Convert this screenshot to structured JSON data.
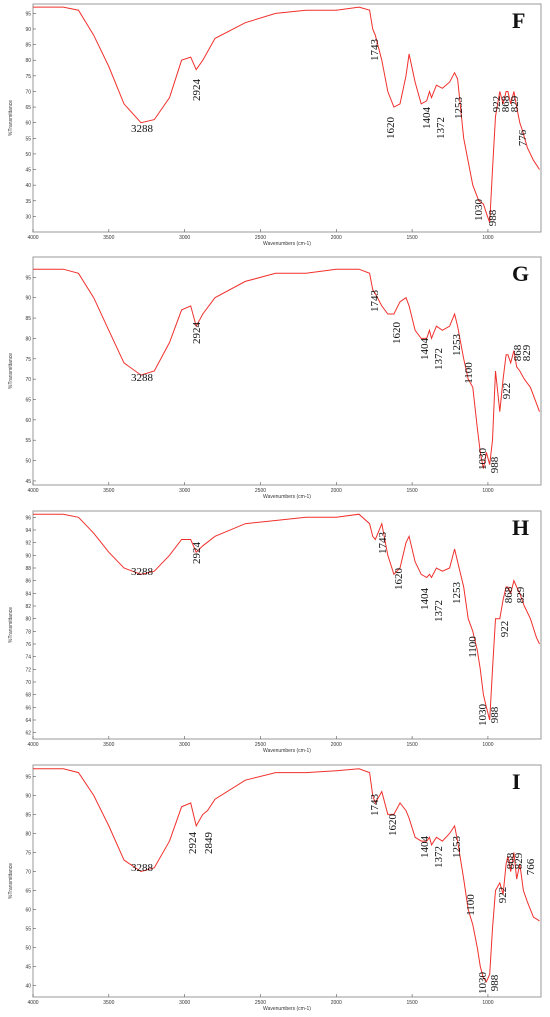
{
  "colors": {
    "line": "#f0302c",
    "frame": "#9a9a9a",
    "text": "#111111"
  },
  "chart_data": [
    {
      "type": "line",
      "panel": "F",
      "xlabel": "Wavenumbers (cm-1)",
      "ylabel": "%Transmittance",
      "xlim": [
        4000,
        650
      ],
      "ylim": [
        25,
        98
      ],
      "x_ticks": [
        "4000",
        "3500",
        "3000",
        "2500",
        "2000",
        "1500",
        "1000"
      ],
      "y_ticks": [
        "30",
        "35",
        "40",
        "45",
        "50",
        "55",
        "60",
        "65",
        "70",
        "75",
        "80",
        "85",
        "90",
        "95"
      ],
      "peak_labels": [
        "3288",
        "2924",
        "1743",
        "1620",
        "1404",
        "1372",
        "1253",
        "1030",
        "988",
        "922",
        "868",
        "829",
        "776"
      ],
      "series": [
        {
          "x": [
            4000,
            3800,
            3700,
            3600,
            3500,
            3400,
            3288,
            3200,
            3100,
            3020,
            2960,
            2924,
            2880,
            2800,
            2600,
            2400,
            2200,
            2000,
            1850,
            1780,
            1760,
            1743,
            1700,
            1660,
            1620,
            1580,
            1540,
            1520,
            1480,
            1440,
            1404,
            1385,
            1372,
            1340,
            1300,
            1253,
            1220,
            1200,
            1160,
            1100,
            1060,
            1030,
            1010,
            988,
            970,
            950,
            922,
            900,
            880,
            868,
            850,
            829,
            810,
            790,
            776,
            740,
            700,
            660
          ],
          "y": [
            97,
            97,
            96,
            88,
            78,
            66,
            60,
            61,
            68,
            80,
            81,
            77,
            80,
            87,
            92,
            95,
            96,
            96,
            97,
            96,
            90,
            88,
            80,
            70,
            65,
            66,
            75,
            82,
            73,
            66,
            67,
            70,
            68,
            72,
            71,
            73,
            76,
            74,
            55,
            40,
            35,
            34,
            31,
            28,
            45,
            62,
            70,
            66,
            70,
            70,
            66,
            70,
            65,
            60,
            58,
            52,
            48,
            45
          ]
        }
      ]
    },
    {
      "type": "line",
      "panel": "G",
      "xlabel": "Wavenumbers (cm-1)",
      "ylabel": "%Transmittance",
      "xlim": [
        4000,
        650
      ],
      "ylim": [
        44,
        100
      ],
      "x_ticks": [
        "4000",
        "3500",
        "3000",
        "2500",
        "2000",
        "1500",
        "1000"
      ],
      "y_ticks": [
        "45",
        "50",
        "55",
        "60",
        "65",
        "70",
        "75",
        "80",
        "85",
        "90",
        "95"
      ],
      "peak_labels": [
        "3288",
        "2924",
        "1743",
        "1620",
        "1404",
        "1372",
        "1253",
        "1100",
        "1030",
        "988",
        "922",
        "868",
        "829"
      ],
      "series": [
        {
          "x": [
            4000,
            3800,
            3700,
            3600,
            3500,
            3400,
            3288,
            3200,
            3100,
            3020,
            2960,
            2924,
            2880,
            2800,
            2600,
            2400,
            2200,
            2000,
            1850,
            1780,
            1760,
            1743,
            1700,
            1660,
            1620,
            1580,
            1540,
            1520,
            1480,
            1440,
            1404,
            1385,
            1372,
            1340,
            1300,
            1253,
            1220,
            1200,
            1160,
            1130,
            1100,
            1070,
            1050,
            1030,
            1010,
            988,
            970,
            950,
            922,
            900,
            880,
            868,
            850,
            829,
            810,
            790,
            760,
            720,
            680,
            660
          ],
          "y": [
            97,
            97,
            96,
            90,
            82,
            74,
            71,
            72,
            79,
            87,
            88,
            83,
            86,
            90,
            94,
            96,
            96,
            97,
            97,
            96,
            92,
            91,
            88,
            86,
            86,
            89,
            90,
            88,
            82,
            80,
            80,
            82,
            80,
            83,
            82,
            83,
            86,
            83,
            75,
            70,
            68,
            58,
            52,
            48,
            52,
            49,
            55,
            72,
            62,
            70,
            76,
            76,
            74,
            77,
            73,
            72,
            70,
            68,
            64,
            62
          ]
        }
      ]
    },
    {
      "type": "line",
      "panel": "H",
      "xlabel": "Wavenumbers (cm-1)",
      "ylabel": "%Transmittance",
      "xlim": [
        4000,
        650
      ],
      "ylim": [
        61,
        97
      ],
      "x_ticks": [
        "4000",
        "3500",
        "3000",
        "2500",
        "2000",
        "1500",
        "1000"
      ],
      "y_ticks": [
        "62",
        "64",
        "66",
        "68",
        "70",
        "72",
        "74",
        "76",
        "78",
        "80",
        "82",
        "84",
        "86",
        "88",
        "90",
        "92",
        "94",
        "96"
      ],
      "peak_labels": [
        "3288",
        "2924",
        "1743",
        "1620",
        "1404",
        "1372",
        "1253",
        "1100",
        "1030",
        "988",
        "922",
        "868",
        "829"
      ],
      "series": [
        {
          "x": [
            4000,
            3800,
            3700,
            3600,
            3500,
            3400,
            3288,
            3200,
            3100,
            3020,
            2960,
            2924,
            2880,
            2800,
            2600,
            2400,
            2200,
            2000,
            1850,
            1780,
            1760,
            1743,
            1700,
            1660,
            1620,
            1580,
            1540,
            1520,
            1480,
            1440,
            1404,
            1385,
            1372,
            1340,
            1300,
            1253,
            1220,
            1200,
            1160,
            1130,
            1100,
            1070,
            1050,
            1030,
            1010,
            988,
            970,
            950,
            922,
            900,
            880,
            868,
            850,
            829,
            810,
            790,
            760,
            720,
            680,
            660
          ],
          "y": [
            96.5,
            96.5,
            96,
            93.5,
            90.5,
            88,
            87,
            87.5,
            90,
            92.5,
            92.5,
            90.5,
            91.5,
            93,
            95,
            95.5,
            96,
            96,
            96.5,
            95,
            93,
            92.5,
            95,
            90,
            87,
            88,
            92,
            93,
            89,
            87,
            86.5,
            87,
            86.5,
            88,
            87.5,
            88,
            91,
            89,
            85,
            80,
            78,
            75,
            72,
            68,
            66,
            64,
            72,
            80,
            80,
            83,
            85,
            85,
            84,
            86,
            85,
            84,
            82,
            80,
            77,
            76
          ]
        }
      ]
    },
    {
      "type": "line",
      "panel": "I",
      "xlabel": "Wavenumbers (cm-1)",
      "ylabel": "%Transmittance",
      "xlim": [
        4000,
        650
      ],
      "ylim": [
        37,
        98
      ],
      "x_ticks": [
        "4000",
        "3500",
        "3000",
        "2500",
        "2000",
        "1500",
        "1000"
      ],
      "y_ticks": [
        "40",
        "45",
        "50",
        "55",
        "60",
        "65",
        "70",
        "75",
        "80",
        "85",
        "90",
        "95"
      ],
      "peak_labels": [
        "3288",
        "2924",
        "2849",
        "1743",
        "1620",
        "1404",
        "1372",
        "1253",
        "1100",
        "1030",
        "988",
        "922",
        "868",
        "829",
        "766"
      ],
      "series": [
        {
          "x": [
            4000,
            3800,
            3700,
            3600,
            3500,
            3400,
            3288,
            3200,
            3100,
            3020,
            2960,
            2924,
            2880,
            2849,
            2800,
            2600,
            2400,
            2200,
            2000,
            1850,
            1780,
            1760,
            1743,
            1700,
            1660,
            1620,
            1580,
            1540,
            1520,
            1480,
            1440,
            1404,
            1385,
            1372,
            1340,
            1300,
            1253,
            1220,
            1200,
            1160,
            1130,
            1100,
            1070,
            1050,
            1030,
            1010,
            988,
            970,
            950,
            922,
            900,
            880,
            868,
            850,
            829,
            810,
            790,
            766,
            740,
            700,
            660
          ],
          "y": [
            97,
            97,
            96,
            90,
            82,
            73,
            70,
            71,
            78,
            87,
            88,
            82,
            85,
            86,
            89,
            94,
            96,
            96,
            96.5,
            97,
            96,
            90,
            88,
            91,
            85,
            85,
            88,
            86,
            84,
            79,
            78,
            78,
            79,
            77,
            79,
            78,
            80,
            82,
            78,
            68,
            60,
            56,
            50,
            45,
            42,
            41,
            43,
            55,
            65,
            67,
            64,
            72,
            74,
            70,
            75,
            68,
            72,
            65,
            62,
            58,
            57
          ]
        }
      ]
    }
  ]
}
